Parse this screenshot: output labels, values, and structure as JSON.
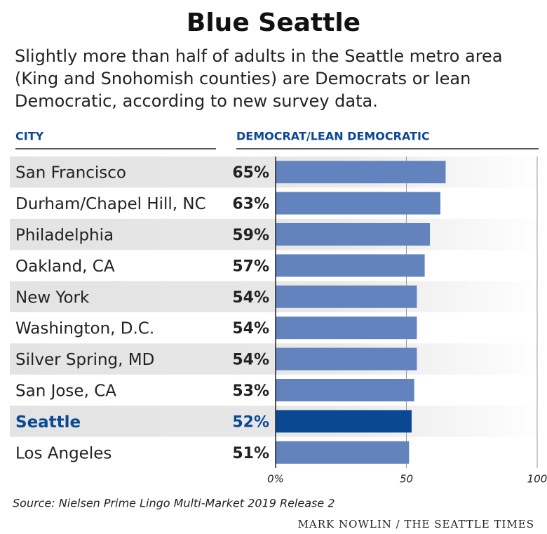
{
  "chart_data": {
    "type": "bar",
    "title": "Blue Seattle",
    "subtitle": "Slightly more than half of adults in the Seattle metro area (King and Snohomish counties) are Democrats or lean Democratic, according to new survey data.",
    "category_header": "CITY",
    "value_header": "DEMOCRAT/LEAN DEMOCRATIC",
    "categories": [
      "San Francisco",
      "Durham/Chapel Hill, NC",
      "Philadelphia",
      "Oakland, CA",
      "New York",
      "Washington, D.C.",
      "Silver Spring, MD",
      "San Jose, CA",
      "Seattle",
      "Los Angeles"
    ],
    "values": [
      65,
      63,
      59,
      57,
      54,
      54,
      54,
      53,
      52,
      51
    ],
    "value_labels": [
      "65%",
      "63%",
      "59%",
      "57%",
      "54%",
      "54%",
      "54%",
      "53%",
      "52%",
      "51%"
    ],
    "color": "#6283bd",
    "colors": [
      "#6283bd",
      "#6283bd",
      "#6283bd",
      "#6283bd",
      "#6283bd",
      "#6283bd",
      "#6283bd",
      "#6283bd",
      "#0b4894",
      "#6283bd"
    ],
    "xlim": [
      0,
      100
    ],
    "xticks": [
      {
        "value": 0,
        "label": "0%"
      },
      50,
      100
    ],
    "grid": true,
    "source": "Source: Nielsen Prime Lingo Multi-Market 2019 Release 2",
    "credit": "MARK NOWLIN / THE SEATTLE TIMES"
  }
}
